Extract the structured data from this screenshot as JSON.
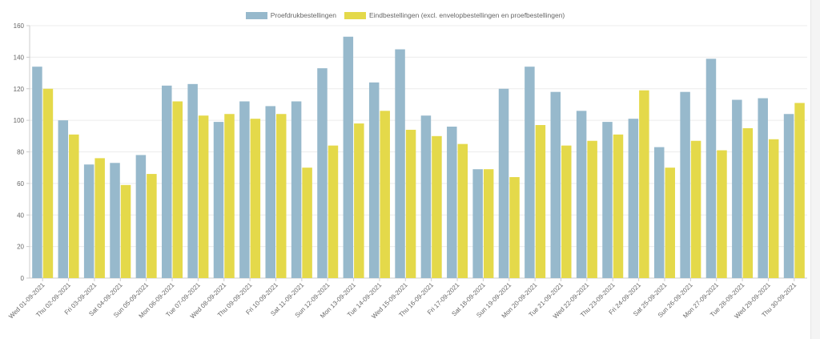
{
  "chart_data": {
    "type": "bar",
    "title": "",
    "xlabel": "",
    "ylabel": "",
    "ylim": [
      0,
      160
    ],
    "yticks": [
      "0",
      "20",
      "40",
      "60",
      "80",
      "100",
      "120",
      "140",
      "160"
    ],
    "grid": true,
    "legend_position": "top",
    "categories": [
      "Wed 01-09-2021",
      "Thu 02-09-2021",
      "Fri 03-09-2021",
      "Sat 04-09-2021",
      "Sun 05-09-2021",
      "Mon 06-09-2021",
      "Tue 07-09-2021",
      "Wed 08-09-2021",
      "Thu 09-09-2021",
      "Fri 10-09-2021",
      "Sat 11-09-2021",
      "Sun 12-09-2021",
      "Mon 13-09-2021",
      "Tue 14-09-2021",
      "Wed 15-09-2021",
      "Thu 16-09-2021",
      "Fri 17-09-2021",
      "Sat 18-09-2021",
      "Sun 19-09-2021",
      "Mon 20-09-2021",
      "Tue 21-09-2021",
      "Wed 22-09-2021",
      "Thu 23-09-2021",
      "Fri 24-09-2021",
      "Sat 25-09-2021",
      "Sun 26-09-2021",
      "Mon 27-09-2021",
      "Tue 28-09-2021",
      "Wed 29-09-2021",
      "Thu 30-09-2021"
    ],
    "series": [
      {
        "name": "Proefdrukbestellingen",
        "color": "#97b9cc",
        "values": [
          134,
          100,
          72,
          73,
          78,
          122,
          123,
          99,
          112,
          109,
          112,
          133,
          153,
          124,
          145,
          103,
          96,
          69,
          120,
          134,
          118,
          106,
          99,
          101,
          83,
          118,
          139,
          113,
          114,
          104
        ]
      },
      {
        "name": "Eindbestellingen (excl. envelopbestellingen en proefbestellingen)",
        "color": "#e4d94a",
        "values": [
          120,
          91,
          76,
          59,
          66,
          112,
          103,
          104,
          101,
          104,
          70,
          84,
          98,
          106,
          94,
          90,
          85,
          69,
          64,
          97,
          84,
          87,
          91,
          119,
          70,
          87,
          81,
          95,
          88,
          111
        ]
      }
    ]
  }
}
